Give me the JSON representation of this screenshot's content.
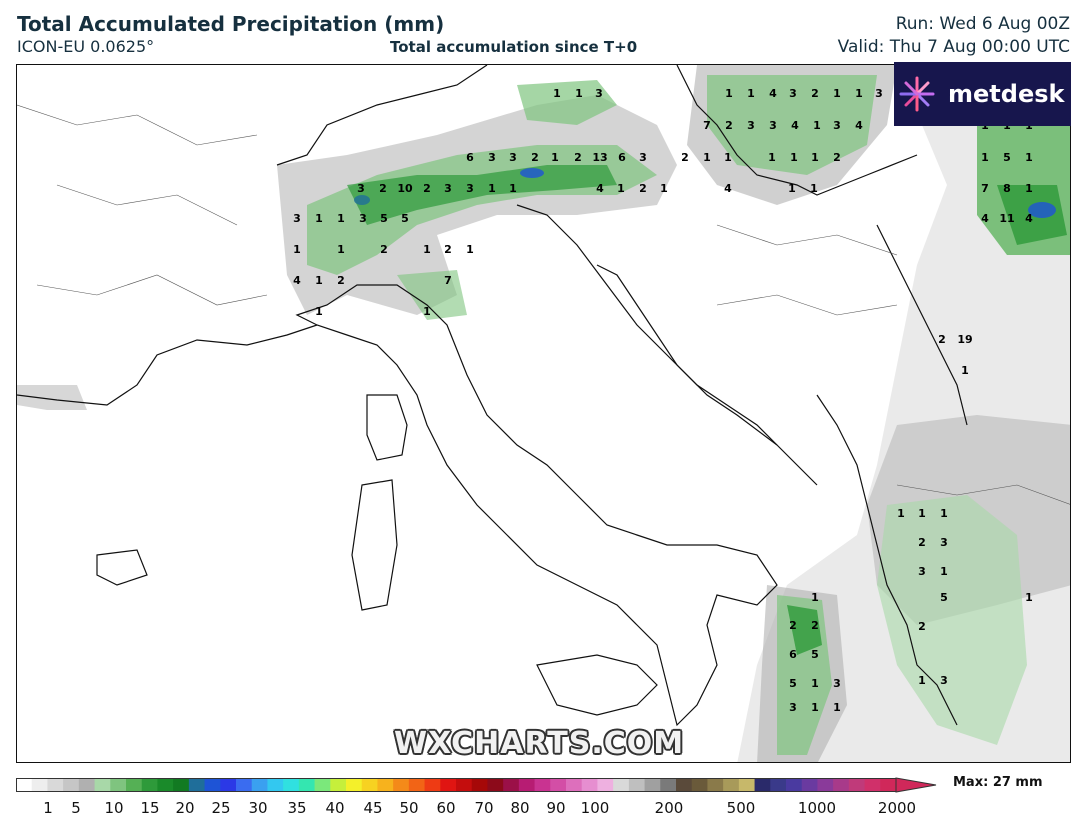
{
  "header": {
    "title": "Total Accumulated Precipitation (mm)",
    "model": "ICON-EU 0.0625°",
    "subtitle": "Total accumulation since T+0",
    "run": "Run: Wed 6 Aug 00Z",
    "valid": "Valid: Thu 7 Aug 00:00 UTC"
  },
  "logo": {
    "text": "metdesk",
    "icon": "metdesk-burst-icon"
  },
  "watermark": "WXCHARTS.COM",
  "scale": {
    "max_label": "Max: 27 mm",
    "ticks": [
      "1",
      "5",
      "10",
      "15",
      "20",
      "25",
      "30",
      "35",
      "40",
      "45",
      "50",
      "60",
      "70",
      "80",
      "90",
      "100",
      "200",
      "500",
      "1000",
      "2000"
    ],
    "colors": [
      "#ffffff",
      "#eeeeee",
      "#d9d9d9",
      "#c6c6c6",
      "#b0b0b0",
      "#a8d8a8",
      "#7fc47f",
      "#55b055",
      "#2e9a3a",
      "#1a8a2a",
      "#127a22",
      "#1f6e9a",
      "#1e54d6",
      "#2b39e6",
      "#3a6cf0",
      "#3aa0f0",
      "#33c8f0",
      "#30e0e0",
      "#34e6b0",
      "#7be87b",
      "#c6ef3b",
      "#f4f02a",
      "#f7d221",
      "#f7b21d",
      "#f48a19",
      "#f26416",
      "#ee3b14",
      "#e01512",
      "#c40d0d",
      "#a60808",
      "#8c0a1a",
      "#9b1048",
      "#b71c73",
      "#c93391",
      "#d34ea6",
      "#dd6fbc",
      "#e68ed0",
      "#eeb0e0",
      "#d9d9d9",
      "#bfbfbf",
      "#a0a0a0",
      "#7a7a7a",
      "#5a4a3a",
      "#6a5a3a",
      "#8a7a4a",
      "#a89a5a",
      "#c7b86a",
      "#2a2a6a",
      "#3a3a8a",
      "#4a3aa0",
      "#6a3aa0",
      "#8a3a9a",
      "#a83a8a",
      "#c03a7a",
      "#d0306a",
      "#d0285a"
    ],
    "label_values": [
      1,
      5,
      10,
      15,
      20,
      25,
      30,
      35,
      40,
      45,
      50,
      60,
      70,
      80,
      90,
      100,
      200,
      500,
      1000,
      2000
    ]
  },
  "precip_labels": [
    {
      "t": "1",
      "v": 1
    },
    {
      "t": "1",
      "v": 1
    },
    {
      "t": "3",
      "v": 3
    },
    {
      "t": "1",
      "v": 1
    },
    {
      "t": "1",
      "v": 1
    },
    {
      "t": "4",
      "v": 4
    },
    {
      "t": "3",
      "v": 3
    },
    {
      "t": "2",
      "v": 2
    },
    {
      "t": "1",
      "v": 1
    },
    {
      "t": "1",
      "v": 1
    },
    {
      "t": "3",
      "v": 3
    },
    {
      "t": "7",
      "v": 7
    },
    {
      "t": "2",
      "v": 2
    },
    {
      "t": "3",
      "v": 3
    },
    {
      "t": "3",
      "v": 3
    },
    {
      "t": "4",
      "v": 4
    },
    {
      "t": "1",
      "v": 1
    },
    {
      "t": "3",
      "v": 3
    },
    {
      "t": "4",
      "v": 4
    },
    {
      "t": "6",
      "v": 6
    },
    {
      "t": "3",
      "v": 3
    },
    {
      "t": "3",
      "v": 3
    },
    {
      "t": "2",
      "v": 2
    },
    {
      "t": "1",
      "v": 1
    },
    {
      "t": "2",
      "v": 2
    },
    {
      "t": "13",
      "v": 13
    },
    {
      "t": "6",
      "v": 6
    },
    {
      "t": "3",
      "v": 3
    },
    {
      "t": "2",
      "v": 2
    },
    {
      "t": "1",
      "v": 1
    },
    {
      "t": "1",
      "v": 1
    },
    {
      "t": "1",
      "v": 1
    },
    {
      "t": "1",
      "v": 1
    },
    {
      "t": "1",
      "v": 1
    },
    {
      "t": "2",
      "v": 2
    },
    {
      "t": "3",
      "v": 3
    },
    {
      "t": "2",
      "v": 2
    },
    {
      "t": "10",
      "v": 10
    },
    {
      "t": "2",
      "v": 2
    },
    {
      "t": "3",
      "v": 3
    },
    {
      "t": "3",
      "v": 3
    },
    {
      "t": "1",
      "v": 1
    },
    {
      "t": "1",
      "v": 1
    },
    {
      "t": "4",
      "v": 4
    },
    {
      "t": "1",
      "v": 1
    },
    {
      "t": "2",
      "v": 2
    },
    {
      "t": "1",
      "v": 1
    },
    {
      "t": "4",
      "v": 4
    },
    {
      "t": "1",
      "v": 1
    },
    {
      "t": "1",
      "v": 1
    },
    {
      "t": "3",
      "v": 3
    },
    {
      "t": "1",
      "v": 1
    },
    {
      "t": "1",
      "v": 1
    },
    {
      "t": "3",
      "v": 3
    },
    {
      "t": "5",
      "v": 5
    },
    {
      "t": "5",
      "v": 5
    },
    {
      "t": "1",
      "v": 1
    },
    {
      "t": "1",
      "v": 1
    },
    {
      "t": "2",
      "v": 2
    },
    {
      "t": "1",
      "v": 1
    },
    {
      "t": "2",
      "v": 2
    },
    {
      "t": "1",
      "v": 1
    },
    {
      "t": "4",
      "v": 4
    },
    {
      "t": "1",
      "v": 1
    },
    {
      "t": "2",
      "v": 2
    },
    {
      "t": "7",
      "v": 7
    },
    {
      "t": "1",
      "v": 1
    },
    {
      "t": "1",
      "v": 1
    },
    {
      "t": "1",
      "v": 1
    },
    {
      "t": "1",
      "v": 1
    },
    {
      "t": "1",
      "v": 1
    },
    {
      "t": "1",
      "v": 1
    },
    {
      "t": "5",
      "v": 5
    },
    {
      "t": "1",
      "v": 1
    },
    {
      "t": "7",
      "v": 7
    },
    {
      "t": "8",
      "v": 8
    },
    {
      "t": "1",
      "v": 1
    },
    {
      "t": "4",
      "v": 4
    },
    {
      "t": "11",
      "v": 11
    },
    {
      "t": "4",
      "v": 4
    },
    {
      "t": "2",
      "v": 2
    },
    {
      "t": "19",
      "v": 19
    },
    {
      "t": "1",
      "v": 1
    },
    {
      "t": "1",
      "v": 1
    },
    {
      "t": "1",
      "v": 1
    },
    {
      "t": "1",
      "v": 1
    },
    {
      "t": "2",
      "v": 2
    },
    {
      "t": "3",
      "v": 3
    },
    {
      "t": "3",
      "v": 3
    },
    {
      "t": "1",
      "v": 1
    },
    {
      "t": "5",
      "v": 5
    },
    {
      "t": "1",
      "v": 1
    },
    {
      "t": "2",
      "v": 2
    },
    {
      "t": "1",
      "v": 1
    },
    {
      "t": "3",
      "v": 3
    },
    {
      "t": "1",
      "v": 1
    },
    {
      "t": "2",
      "v": 2
    },
    {
      "t": "2",
      "v": 2
    },
    {
      "t": "6",
      "v": 6
    },
    {
      "t": "5",
      "v": 5
    },
    {
      "t": "5",
      "v": 5
    },
    {
      "t": "1",
      "v": 1
    },
    {
      "t": "3",
      "v": 3
    },
    {
      "t": "3",
      "v": 3
    },
    {
      "t": "1",
      "v": 1
    },
    {
      "t": "1",
      "v": 1
    },
    {
      "t": "3",
      "v": 3
    },
    {
      "t": "1",
      "v": 1
    }
  ]
}
